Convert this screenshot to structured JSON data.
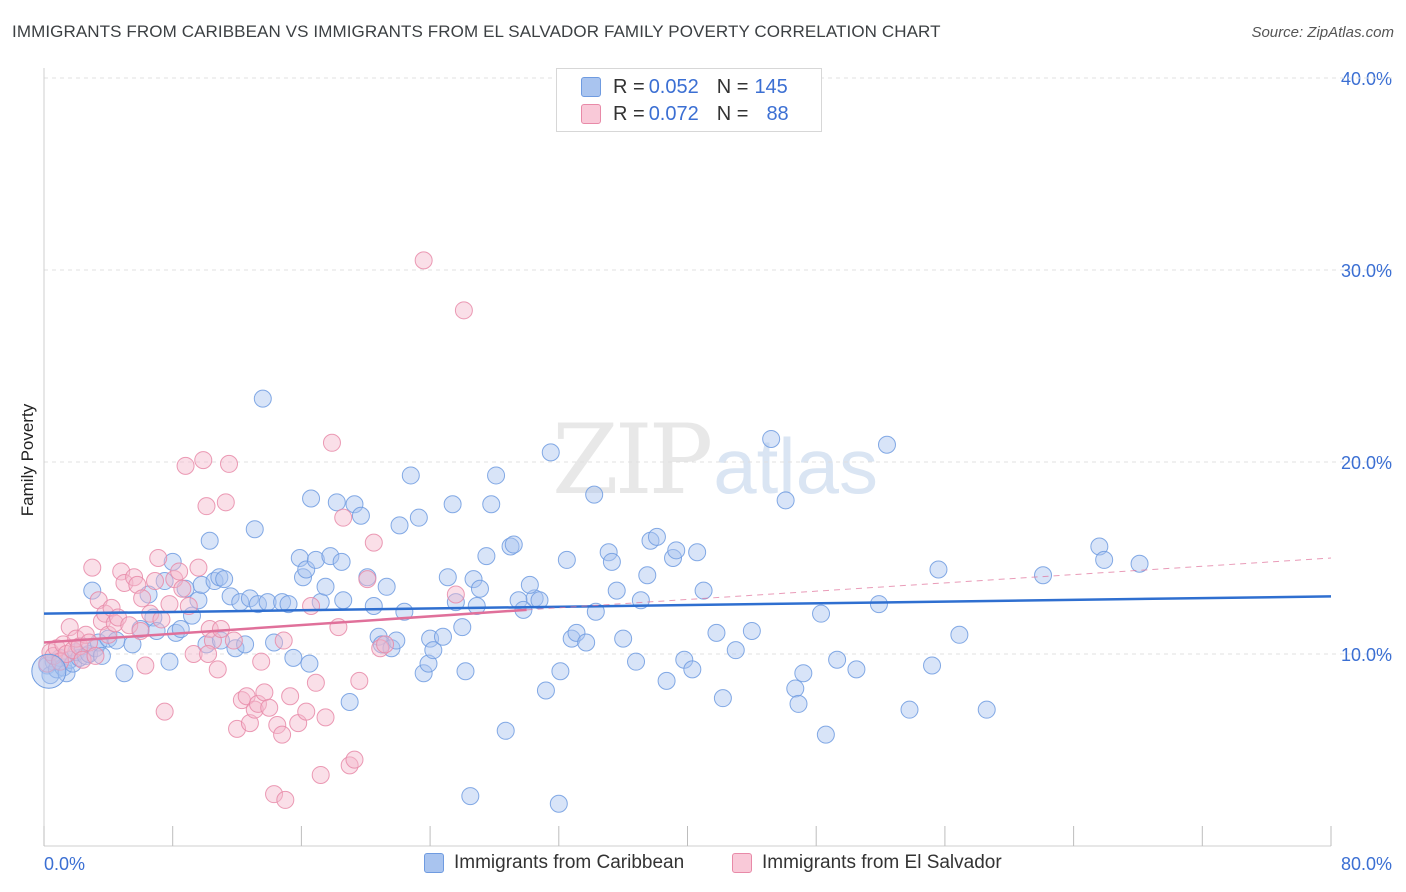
{
  "title": "IMMIGRANTS FROM CARIBBEAN VS IMMIGRANTS FROM EL SALVADOR FAMILY POVERTY CORRELATION CHART",
  "source": "Source: ZipAtlas.com",
  "watermark": {
    "zip": "ZIP",
    "atlas": "atlas"
  },
  "legend": {
    "rows": [
      {
        "r_label": "R =",
        "r_value": "0.052",
        "n_label": "N =",
        "n_value": "145"
      },
      {
        "r_label": "R =",
        "r_value": "0.072",
        "n_label": "N =",
        "n_value": "88"
      }
    ]
  },
  "colors": {
    "blue_fill": "#a9c4ef",
    "blue_stroke": "#6f9be0",
    "blue_line": "#2f6fd0",
    "pink_fill": "#f5b8cb",
    "pink_stroke": "#e88aa8",
    "pink_line": "#e0709a",
    "grid": "#e0e0e0",
    "tick_label": "#3b6fd3"
  },
  "chart_data": {
    "type": "scatter",
    "title": "IMMIGRANTS FROM CARIBBEAN VS IMMIGRANTS FROM EL SALVADOR FAMILY POVERTY CORRELATION CHART",
    "xlabel": "",
    "ylabel": "Family Poverty",
    "xlim": [
      0,
      80
    ],
    "ylim": [
      0,
      40
    ],
    "x_tick_labels": [
      "0.0%",
      "80.0%"
    ],
    "y_ticks": [
      10,
      20,
      30,
      40
    ],
    "y_tick_labels": [
      "10.0%",
      "20.0%",
      "30.0%",
      "40.0%"
    ],
    "grid": true,
    "legend_position": "top-center",
    "series": [
      {
        "name": "Immigrants from Caribbean",
        "color": "#6f9be0",
        "trend": {
          "x": [
            0,
            80
          ],
          "y": [
            12.1,
            13.0
          ]
        },
        "points": [
          [
            0.2,
            9.4
          ],
          [
            0.4,
            8.9
          ],
          [
            0.6,
            9.6
          ],
          [
            0.8,
            9.2
          ],
          [
            1.0,
            9.8
          ],
          [
            1.2,
            9.3
          ],
          [
            1.4,
            9.0
          ],
          [
            1.6,
            9.7
          ],
          [
            1.8,
            9.5
          ],
          [
            2.0,
            10.1
          ],
          [
            2.2,
            9.8
          ],
          [
            2.4,
            10.4
          ],
          [
            2.6,
            9.9
          ],
          [
            2.8,
            10.0
          ],
          [
            3.0,
            13.3
          ],
          [
            3.2,
            10.3
          ],
          [
            3.4,
            10.6
          ],
          [
            3.6,
            9.9
          ],
          [
            4.0,
            10.8
          ],
          [
            4.5,
            10.7
          ],
          [
            5.0,
            9.0
          ],
          [
            5.5,
            10.5
          ],
          [
            6.0,
            11.3
          ],
          [
            6.5,
            13.1
          ],
          [
            6.8,
            11.9
          ],
          [
            7.0,
            11.2
          ],
          [
            7.5,
            13.8
          ],
          [
            7.8,
            9.6
          ],
          [
            8.0,
            14.8
          ],
          [
            8.2,
            11.1
          ],
          [
            8.5,
            11.3
          ],
          [
            8.8,
            13.4
          ],
          [
            9.2,
            12.0
          ],
          [
            9.6,
            12.8
          ],
          [
            9.8,
            13.6
          ],
          [
            10.1,
            10.5
          ],
          [
            10.3,
            15.9
          ],
          [
            10.6,
            13.8
          ],
          [
            10.9,
            14.0
          ],
          [
            11.2,
            13.9
          ],
          [
            11.6,
            13.0
          ],
          [
            11.9,
            10.3
          ],
          [
            12.2,
            12.7
          ],
          [
            12.5,
            10.5
          ],
          [
            12.8,
            12.9
          ],
          [
            13.1,
            16.5
          ],
          [
            13.3,
            12.6
          ],
          [
            13.6,
            23.3
          ],
          [
            13.9,
            12.7
          ],
          [
            14.3,
            10.6
          ],
          [
            14.8,
            12.7
          ],
          [
            15.2,
            12.6
          ],
          [
            15.5,
            9.8
          ],
          [
            15.9,
            15.0
          ],
          [
            16.1,
            14.0
          ],
          [
            16.3,
            14.4
          ],
          [
            16.6,
            18.1
          ],
          [
            16.9,
            14.9
          ],
          [
            17.2,
            12.7
          ],
          [
            17.5,
            13.5
          ],
          [
            17.8,
            15.1
          ],
          [
            18.2,
            17.9
          ],
          [
            18.6,
            12.8
          ],
          [
            19.0,
            7.5
          ],
          [
            19.3,
            17.8
          ],
          [
            19.7,
            17.2
          ],
          [
            20.1,
            14.0
          ],
          [
            20.5,
            12.5
          ],
          [
            20.8,
            10.9
          ],
          [
            21.0,
            10.5
          ],
          [
            21.3,
            13.5
          ],
          [
            21.6,
            10.3
          ],
          [
            22.1,
            16.7
          ],
          [
            22.4,
            12.2
          ],
          [
            22.8,
            19.3
          ],
          [
            23.3,
            17.1
          ],
          [
            23.6,
            9.0
          ],
          [
            23.9,
            9.5
          ],
          [
            24.0,
            10.8
          ],
          [
            24.2,
            10.2
          ],
          [
            25.1,
            14.0
          ],
          [
            25.4,
            17.8
          ],
          [
            25.6,
            12.7
          ],
          [
            26.0,
            11.4
          ],
          [
            26.2,
            9.1
          ],
          [
            26.7,
            13.9
          ],
          [
            26.9,
            12.5
          ],
          [
            27.1,
            13.4
          ],
          [
            27.5,
            15.1
          ],
          [
            27.8,
            17.8
          ],
          [
            28.1,
            19.3
          ],
          [
            28.7,
            6.0
          ],
          [
            29.0,
            15.6
          ],
          [
            29.2,
            15.7
          ],
          [
            29.5,
            12.8
          ],
          [
            29.8,
            12.3
          ],
          [
            30.5,
            12.9
          ],
          [
            30.8,
            12.8
          ],
          [
            31.2,
            8.1
          ],
          [
            31.5,
            20.5
          ],
          [
            32.1,
            9.1
          ],
          [
            32.5,
            14.9
          ],
          [
            32.8,
            10.8
          ],
          [
            33.1,
            11.1
          ],
          [
            33.7,
            10.6
          ],
          [
            34.2,
            18.3
          ],
          [
            35.1,
            15.3
          ],
          [
            35.3,
            14.8
          ],
          [
            35.6,
            13.3
          ],
          [
            36.0,
            10.8
          ],
          [
            36.8,
            9.6
          ],
          [
            37.1,
            12.8
          ],
          [
            37.5,
            14.1
          ],
          [
            37.7,
            15.9
          ],
          [
            38.1,
            16.1
          ],
          [
            38.7,
            8.6
          ],
          [
            39.1,
            15.0
          ],
          [
            39.3,
            15.4
          ],
          [
            39.8,
            9.7
          ],
          [
            40.3,
            9.2
          ],
          [
            40.6,
            15.3
          ],
          [
            41.0,
            13.3
          ],
          [
            41.8,
            11.1
          ],
          [
            42.2,
            7.7
          ],
          [
            43.0,
            10.2
          ],
          [
            44.0,
            11.2
          ],
          [
            45.2,
            21.2
          ],
          [
            46.1,
            18.0
          ],
          [
            46.7,
            8.2
          ],
          [
            46.9,
            7.4
          ],
          [
            47.2,
            9.0
          ],
          [
            48.3,
            12.1
          ],
          [
            48.6,
            5.8
          ],
          [
            49.3,
            9.7
          ],
          [
            50.5,
            9.2
          ],
          [
            51.9,
            12.6
          ],
          [
            52.4,
            20.9
          ],
          [
            53.8,
            7.1
          ],
          [
            55.2,
            9.4
          ],
          [
            55.6,
            14.4
          ],
          [
            56.9,
            11.0
          ],
          [
            58.6,
            7.1
          ],
          [
            62.1,
            14.1
          ],
          [
            65.6,
            15.6
          ],
          [
            65.9,
            14.9
          ],
          [
            68.1,
            14.7
          ],
          [
            16.5,
            9.5
          ],
          [
            26.5,
            2.6
          ],
          [
            32.0,
            2.2
          ],
          [
            34.3,
            12.2
          ],
          [
            18.5,
            14.8
          ],
          [
            21.9,
            10.7
          ],
          [
            24.8,
            10.9
          ],
          [
            30.2,
            13.6
          ],
          [
            11.0,
            10.7
          ]
        ]
      },
      {
        "name": "Immigrants from El Salvador",
        "color": "#e88aa8",
        "trend": {
          "x": [
            0,
            30
          ],
          "y": [
            10.6,
            12.3
          ]
        },
        "trend_extension": {
          "x": [
            30,
            80
          ],
          "y": [
            12.3,
            15.0
          ]
        },
        "points": [
          [
            0.2,
            9.5
          ],
          [
            0.4,
            10.1
          ],
          [
            0.6,
            9.9
          ],
          [
            0.8,
            10.3
          ],
          [
            1.0,
            9.6
          ],
          [
            1.2,
            10.5
          ],
          [
            1.4,
            10.0
          ],
          [
            1.6,
            11.4
          ],
          [
            1.8,
            10.2
          ],
          [
            2.0,
            10.8
          ],
          [
            2.2,
            10.4
          ],
          [
            2.4,
            9.7
          ],
          [
            2.6,
            11.0
          ],
          [
            2.8,
            10.6
          ],
          [
            3.0,
            14.5
          ],
          [
            3.2,
            9.9
          ],
          [
            3.4,
            12.8
          ],
          [
            3.6,
            11.7
          ],
          [
            3.8,
            12.1
          ],
          [
            4.0,
            11.0
          ],
          [
            4.2,
            12.4
          ],
          [
            4.4,
            11.6
          ],
          [
            4.6,
            11.9
          ],
          [
            4.8,
            14.3
          ],
          [
            5.0,
            13.7
          ],
          [
            5.3,
            11.5
          ],
          [
            5.6,
            14.0
          ],
          [
            5.8,
            13.6
          ],
          [
            6.0,
            11.2
          ],
          [
            6.3,
            9.4
          ],
          [
            6.6,
            12.1
          ],
          [
            6.9,
            13.8
          ],
          [
            7.1,
            15.0
          ],
          [
            7.3,
            11.8
          ],
          [
            7.5,
            7.0
          ],
          [
            7.8,
            12.6
          ],
          [
            8.1,
            13.9
          ],
          [
            8.4,
            14.3
          ],
          [
            8.6,
            13.4
          ],
          [
            8.8,
            19.8
          ],
          [
            9.0,
            12.5
          ],
          [
            9.3,
            10.0
          ],
          [
            9.6,
            14.5
          ],
          [
            9.9,
            20.1
          ],
          [
            10.1,
            17.7
          ],
          [
            10.3,
            11.3
          ],
          [
            10.5,
            10.7
          ],
          [
            10.8,
            9.2
          ],
          [
            11.0,
            11.3
          ],
          [
            11.3,
            17.9
          ],
          [
            11.5,
            19.9
          ],
          [
            11.8,
            10.7
          ],
          [
            12.0,
            6.1
          ],
          [
            12.3,
            7.6
          ],
          [
            12.6,
            7.8
          ],
          [
            12.8,
            6.4
          ],
          [
            13.1,
            7.1
          ],
          [
            13.3,
            7.4
          ],
          [
            13.5,
            9.6
          ],
          [
            13.7,
            8.0
          ],
          [
            14.0,
            7.2
          ],
          [
            14.3,
            2.7
          ],
          [
            14.5,
            6.3
          ],
          [
            14.8,
            5.8
          ],
          [
            15.0,
            2.4
          ],
          [
            15.3,
            7.8
          ],
          [
            15.8,
            6.4
          ],
          [
            16.3,
            7.0
          ],
          [
            16.6,
            12.5
          ],
          [
            16.9,
            8.5
          ],
          [
            17.2,
            3.7
          ],
          [
            17.5,
            6.7
          ],
          [
            17.9,
            21.0
          ],
          [
            18.3,
            11.4
          ],
          [
            18.6,
            17.1
          ],
          [
            19.0,
            4.2
          ],
          [
            19.3,
            4.5
          ],
          [
            19.6,
            8.6
          ],
          [
            20.1,
            13.9
          ],
          [
            20.5,
            15.8
          ],
          [
            20.9,
            10.3
          ],
          [
            21.2,
            10.5
          ],
          [
            23.6,
            30.5
          ],
          [
            25.6,
            13.1
          ],
          [
            26.1,
            27.9
          ],
          [
            10.2,
            10.0
          ],
          [
            6.1,
            12.9
          ],
          [
            14.9,
            10.7
          ]
        ]
      }
    ]
  },
  "axis": {
    "x_min_label": "0.0%",
    "x_max_label": "80.0%",
    "ylabel": "Family Poverty"
  },
  "bottom_legend": {
    "items": [
      "Immigrants from Caribbean",
      "Immigrants from El Salvador"
    ]
  }
}
